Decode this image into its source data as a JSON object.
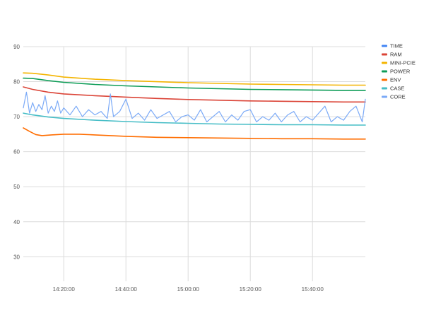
{
  "chart_data": {
    "type": "line",
    "title": "",
    "xlabel": "",
    "ylabel": "",
    "x_range": [
      "14:07:00",
      "15:57:00"
    ],
    "ylim": [
      23,
      90
    ],
    "x_ticks": [
      "14:20:00",
      "14:40:00",
      "15:00:00",
      "15:20:00",
      "15:40:00"
    ],
    "y_ticks": [
      30,
      40,
      50,
      60,
      70,
      80,
      90
    ],
    "grid": true,
    "legend_position": "right",
    "series": [
      {
        "name": "TIME",
        "color": "#4285f4",
        "x": [],
        "y": []
      },
      {
        "name": "RAM",
        "color": "#db4437",
        "x": [
          "14:07:00",
          "14:10:00",
          "14:15:00",
          "14:20:00",
          "14:30:00",
          "14:40:00",
          "14:50:00",
          "15:00:00",
          "15:10:00",
          "15:20:00",
          "15:30:00",
          "15:40:00",
          "15:50:00",
          "15:57:00"
        ],
        "y": [
          78.5,
          77.8,
          77.0,
          76.5,
          76.0,
          75.6,
          75.2,
          74.9,
          74.7,
          74.5,
          74.4,
          74.3,
          74.2,
          74.2
        ]
      },
      {
        "name": "MINI-PCIE",
        "color": "#f4b400",
        "x": [
          "14:07:00",
          "14:10:00",
          "14:15:00",
          "14:20:00",
          "14:30:00",
          "14:40:00",
          "14:50:00",
          "15:00:00",
          "15:10:00",
          "15:20:00",
          "15:30:00",
          "15:40:00",
          "15:50:00",
          "15:57:00"
        ],
        "y": [
          82.5,
          82.4,
          81.9,
          81.3,
          80.7,
          80.3,
          80.0,
          79.7,
          79.5,
          79.3,
          79.2,
          79.1,
          79.0,
          79.0
        ]
      },
      {
        "name": "POWER",
        "color": "#0f9d58",
        "x": [
          "14:07:00",
          "14:10:00",
          "14:15:00",
          "14:20:00",
          "14:30:00",
          "14:40:00",
          "14:50:00",
          "15:00:00",
          "15:10:00",
          "15:20:00",
          "15:30:00",
          "15:40:00",
          "15:50:00",
          "15:57:00"
        ],
        "y": [
          81.0,
          80.9,
          80.3,
          79.8,
          79.2,
          78.8,
          78.5,
          78.2,
          78.0,
          77.8,
          77.7,
          77.6,
          77.5,
          77.5
        ]
      },
      {
        "name": "ENV",
        "color": "#ff6d00",
        "x": [
          "14:07:00",
          "14:09:00",
          "14:11:00",
          "14:13:00",
          "14:16:00",
          "14:20:00",
          "14:25:00",
          "14:30:00",
          "14:40:00",
          "14:50:00",
          "15:00:00",
          "15:10:00",
          "15:20:00",
          "15:30:00",
          "15:40:00",
          "15:50:00",
          "15:57:00"
        ],
        "y": [
          66.8,
          65.8,
          64.9,
          64.6,
          64.8,
          65.0,
          65.0,
          64.8,
          64.4,
          64.1,
          64.0,
          63.9,
          63.8,
          63.7,
          63.7,
          63.6,
          63.6
        ]
      },
      {
        "name": "CASE",
        "color": "#46bdc6",
        "x": [
          "14:07:00",
          "14:10:00",
          "14:15:00",
          "14:20:00",
          "14:30:00",
          "14:40:00",
          "14:50:00",
          "15:00:00",
          "15:10:00",
          "15:20:00",
          "15:30:00",
          "15:40:00",
          "15:50:00",
          "15:57:00"
        ],
        "y": [
          71.0,
          70.5,
          69.9,
          69.5,
          69.0,
          68.6,
          68.3,
          68.1,
          67.9,
          67.8,
          67.7,
          67.7,
          67.6,
          67.6
        ]
      },
      {
        "name": "CORE",
        "color": "#7baaf7",
        "x": [
          "14:07:00",
          "14:08:00",
          "14:09:00",
          "14:10:00",
          "14:11:00",
          "14:12:00",
          "14:13:00",
          "14:14:00",
          "14:15:00",
          "14:16:00",
          "14:17:00",
          "14:18:00",
          "14:19:00",
          "14:20:00",
          "14:22:00",
          "14:24:00",
          "14:26:00",
          "14:28:00",
          "14:30:00",
          "14:32:00",
          "14:34:00",
          "14:35:00",
          "14:36:00",
          "14:38:00",
          "14:40:00",
          "14:42:00",
          "14:44:00",
          "14:46:00",
          "14:48:00",
          "14:50:00",
          "14:52:00",
          "14:54:00",
          "14:56:00",
          "14:58:00",
          "15:00:00",
          "15:02:00",
          "15:04:00",
          "15:06:00",
          "15:08:00",
          "15:10:00",
          "15:12:00",
          "15:14:00",
          "15:16:00",
          "15:18:00",
          "15:20:00",
          "15:22:00",
          "15:24:00",
          "15:26:00",
          "15:28:00",
          "15:30:00",
          "15:32:00",
          "15:34:00",
          "15:36:00",
          "15:38:00",
          "15:40:00",
          "15:42:00",
          "15:44:00",
          "15:46:00",
          "15:48:00",
          "15:50:00",
          "15:52:00",
          "15:54:00",
          "15:56:00",
          "15:57:00"
        ],
        "y": [
          72.5,
          77.0,
          71.0,
          74.0,
          71.5,
          73.5,
          72.0,
          76.0,
          71.0,
          73.0,
          71.5,
          74.5,
          71.0,
          72.5,
          70.5,
          73.0,
          70.0,
          72.0,
          70.5,
          71.5,
          69.5,
          76.5,
          70.0,
          71.5,
          75.0,
          69.5,
          71.0,
          69.0,
          72.0,
          69.5,
          70.5,
          71.5,
          68.5,
          70.0,
          70.5,
          69.0,
          72.0,
          68.5,
          70.0,
          71.5,
          68.5,
          70.5,
          69.0,
          71.5,
          72.0,
          68.5,
          70.0,
          69.0,
          71.0,
          68.5,
          70.5,
          71.5,
          68.5,
          70.0,
          69.0,
          71.0,
          73.0,
          68.5,
          70.0,
          69.0,
          71.5,
          73.0,
          68.5,
          75.0
        ]
      }
    ]
  }
}
